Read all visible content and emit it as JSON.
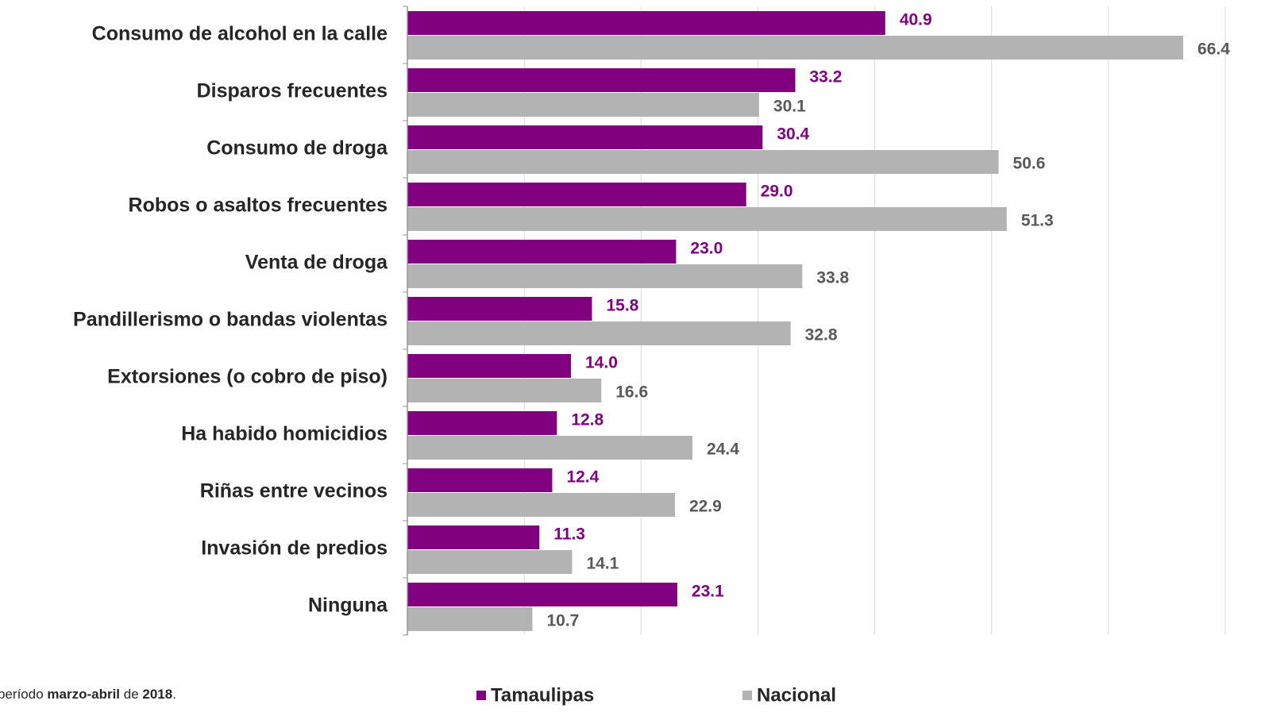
{
  "chart_data": {
    "type": "barh",
    "categories": [
      "Consumo de alcohol en la calle",
      "Disparos frecuentes",
      "Consumo de droga",
      "Robos o asaltos frecuentes",
      "Venta de droga",
      "Pandillerismo o bandas violentas",
      "Extorsiones (o cobro de piso)",
      "Ha habido homicidios",
      "Riñas entre vecinos",
      "Invasión de predios",
      "Ninguna"
    ],
    "series": [
      {
        "name": "Tamaulipas",
        "color": "#800080",
        "values": [
          40.9,
          33.2,
          30.4,
          29.0,
          23.0,
          15.8,
          14.0,
          12.8,
          12.4,
          11.3,
          23.1
        ],
        "value_labels": [
          "40.9",
          "33.2",
          "30.4",
          "29.0",
          "23.0",
          "15.8",
          "14.0",
          "12.8",
          "12.4",
          "11.3",
          "23.1"
        ]
      },
      {
        "name": "Nacional",
        "color": "#b3b3b3",
        "values": [
          66.4,
          30.1,
          50.6,
          51.3,
          33.8,
          32.8,
          16.6,
          24.4,
          22.9,
          14.1,
          10.7
        ],
        "value_labels": [
          "66.4",
          "30.1",
          "50.6",
          "51.3",
          "33.8",
          "32.8",
          "16.6",
          "24.4",
          "22.9",
          "14.1",
          "10.7"
        ]
      }
    ],
    "xlim": [
      0,
      70
    ],
    "xticks": [
      0,
      10,
      20,
      30,
      40,
      50,
      60,
      70
    ],
    "grid": true,
    "note": [
      "período ",
      "marzo-abril",
      " de ",
      "2018",
      "."
    ]
  }
}
